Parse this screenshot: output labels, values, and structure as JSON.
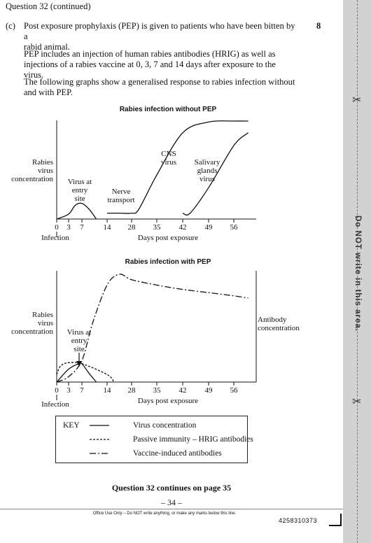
{
  "header": "Question 32 (continued)",
  "part_label": "(c)",
  "marks": "8",
  "intro_lines": [
    "Post exposure prophylaxis (PEP) is given to patients who have been bitten by a",
    "rabid animal."
  ],
  "pep_lines": [
    "PEP includes an injection of human rabies antibodies (HRIG) as well as",
    "injections of a rabies vaccine at 0, 3, 7 and 14 days after exposure to the virus."
  ],
  "graphs_intro_lines": [
    "The following graphs show a generalised response to rabies infection without",
    "and with PEP."
  ],
  "chart_data": [
    {
      "type": "line",
      "title": "Rabies infection without PEP",
      "xlabel": "Days post exposure",
      "ylabel_lines": [
        "Rabies",
        "virus",
        "concentration"
      ],
      "x_ticks": [
        "0",
        "3",
        "7",
        "14",
        "28",
        "35",
        "42",
        "49",
        "56"
      ],
      "x_origin_label": "Infection",
      "annotations": [
        {
          "lines": [
            "Virus at",
            "entry",
            "site"
          ]
        },
        {
          "lines": [
            "Nerve",
            "transport"
          ]
        },
        {
          "lines": [
            "CNS",
            "virus"
          ]
        },
        {
          "lines": [
            "Salivary",
            "glands",
            "virus"
          ]
        }
      ],
      "series": [
        {
          "style": "solid",
          "x": [
            0,
            3,
            5,
            7,
            9,
            11
          ],
          "y": [
            0.0,
            0.05,
            0.14,
            0.16,
            0.1,
            0.0
          ]
        },
        {
          "style": "solid",
          "x": [
            14,
            21,
            28,
            30,
            35,
            42,
            49,
            56,
            60
          ],
          "y": [
            0.06,
            0.06,
            0.06,
            0.1,
            0.45,
            0.88,
            0.99,
            1.0,
            1.0
          ]
        },
        {
          "style": "solid",
          "x": [
            42,
            44,
            49,
            56,
            60
          ],
          "y": [
            0.06,
            0.06,
            0.32,
            0.75,
            0.88
          ]
        }
      ]
    },
    {
      "type": "line",
      "title": "Rabies infection with PEP",
      "xlabel": "Days post exposure",
      "ylabel_lines": [
        "Rabies",
        "virus",
        "concentration"
      ],
      "y2label_lines": [
        "Antibody",
        "concentration"
      ],
      "x_ticks": [
        "0",
        "3",
        "7",
        "14",
        "28",
        "35",
        "42",
        "49",
        "56"
      ],
      "x_origin_label": "Infection",
      "annotations": [
        {
          "lines": [
            "Virus at",
            "entry",
            "site"
          ]
        }
      ],
      "series": [
        {
          "name": "Virus concentration",
          "style": "solid",
          "x": [
            0,
            3,
            6,
            7,
            9,
            11
          ],
          "y": [
            0.0,
            0.12,
            0.17,
            0.17,
            0.08,
            0.0
          ]
        },
        {
          "name": "Passive immunity – HRIG antibodies",
          "style": "dashed",
          "x": [
            0,
            1,
            3,
            7,
            14,
            18
          ],
          "y": [
            0.07,
            0.15,
            0.18,
            0.17,
            0.07,
            0.0
          ]
        },
        {
          "name": "Vaccine-induced antibodies",
          "style": "dashdot",
          "x": [
            0,
            3,
            7,
            10,
            14,
            21,
            28,
            35,
            42,
            49,
            56,
            60
          ],
          "y": [
            0.0,
            0.05,
            0.2,
            0.55,
            0.9,
            1.0,
            0.95,
            0.9,
            0.86,
            0.83,
            0.8,
            0.78
          ]
        }
      ]
    }
  ],
  "key": {
    "title": "KEY",
    "items": [
      {
        "style": "solid",
        "label": "Virus concentration"
      },
      {
        "style": "dashed",
        "label": "Passive immunity – HRIG antibodies"
      },
      {
        "style": "dashdot",
        "label": "Vaccine-induced antibodies"
      }
    ]
  },
  "footer_continue": "Question 32 continues on page 35",
  "page_number": "– 34 –",
  "office_use": "Office Use Only – Do NOT write anything, or make any marks below this line.",
  "barcode_number": "4258310373",
  "margin_text": "Do NOT write in this area.",
  "scissors_icon": "scissors-icon"
}
